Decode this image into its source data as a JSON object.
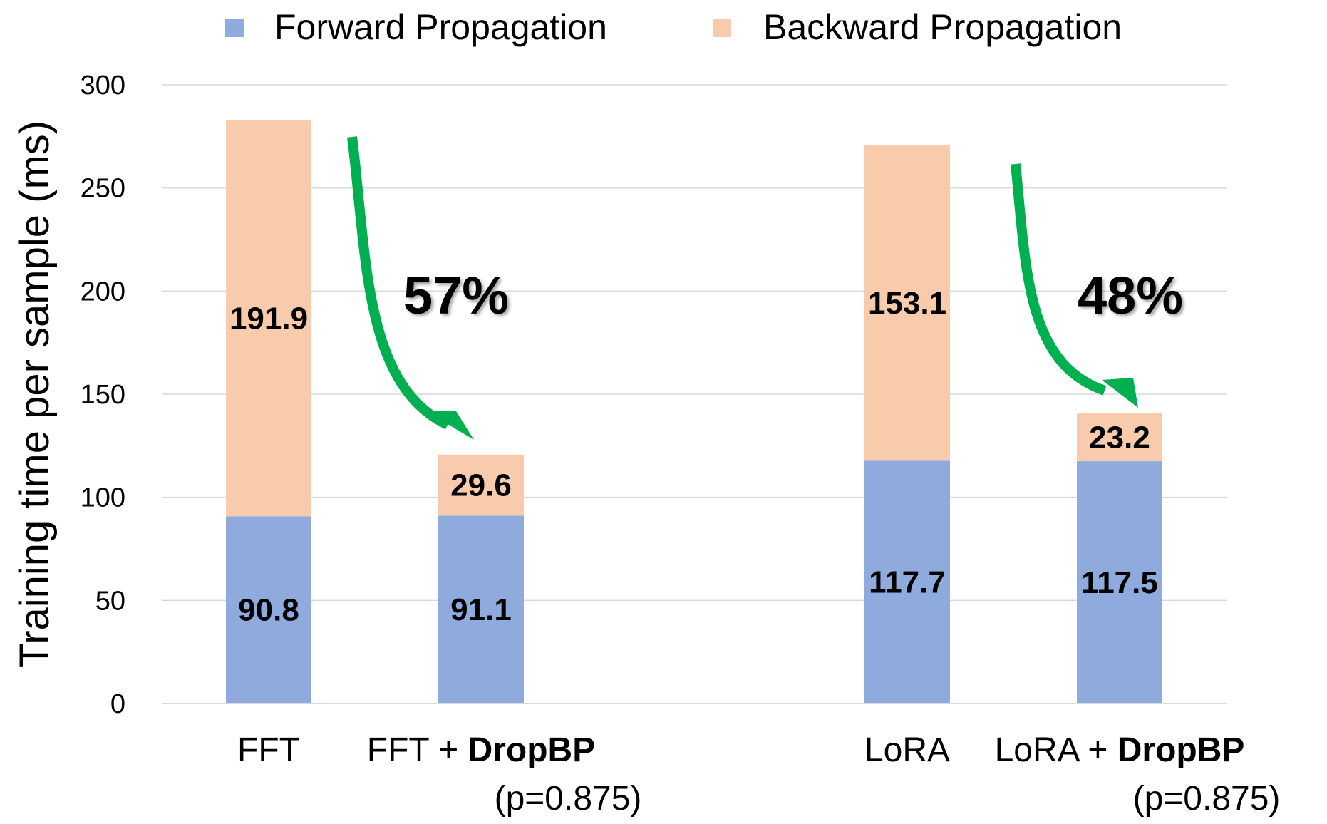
{
  "chart_data": {
    "type": "bar",
    "stacked": true,
    "ylabel": "Training time per sample (ms)",
    "xlabel": "",
    "ylim": [
      0,
      300
    ],
    "yticks": [
      0,
      50,
      100,
      150,
      200,
      250,
      300
    ],
    "grid": true,
    "legend_position": "top",
    "categories": [
      {
        "main": "FFT",
        "bold": "",
        "sub": ""
      },
      {
        "main": "FFT + ",
        "bold": "DropBP",
        "sub": "(p=0.875)"
      },
      {
        "main": "LoRA",
        "bold": "",
        "sub": ""
      },
      {
        "main": "LoRA + ",
        "bold": "DropBP",
        "sub": "(p=0.875)"
      }
    ],
    "series": [
      {
        "name": "Forward Propagation",
        "color": "#8FAADC",
        "values": [
          90.8,
          91.1,
          117.7,
          117.5
        ],
        "labels": [
          "90.8",
          "91.1",
          "117.7",
          "117.5"
        ]
      },
      {
        "name": "Backward Propagation",
        "color": "#F8CBAD",
        "values": [
          191.9,
          29.6,
          153.1,
          23.2
        ],
        "labels": [
          "191.9",
          "29.6",
          "153.1",
          "23.2"
        ]
      }
    ],
    "annotations": [
      {
        "text": "57%",
        "from_category": 0,
        "to_category": 1,
        "arrow_color": "#00B050"
      },
      {
        "text": "48%",
        "from_category": 2,
        "to_category": 3,
        "arrow_color": "#00B050"
      }
    ]
  },
  "colors": {
    "grid": "#D9D9D9",
    "axis": "#D9D9D9",
    "text": "#000000"
  }
}
